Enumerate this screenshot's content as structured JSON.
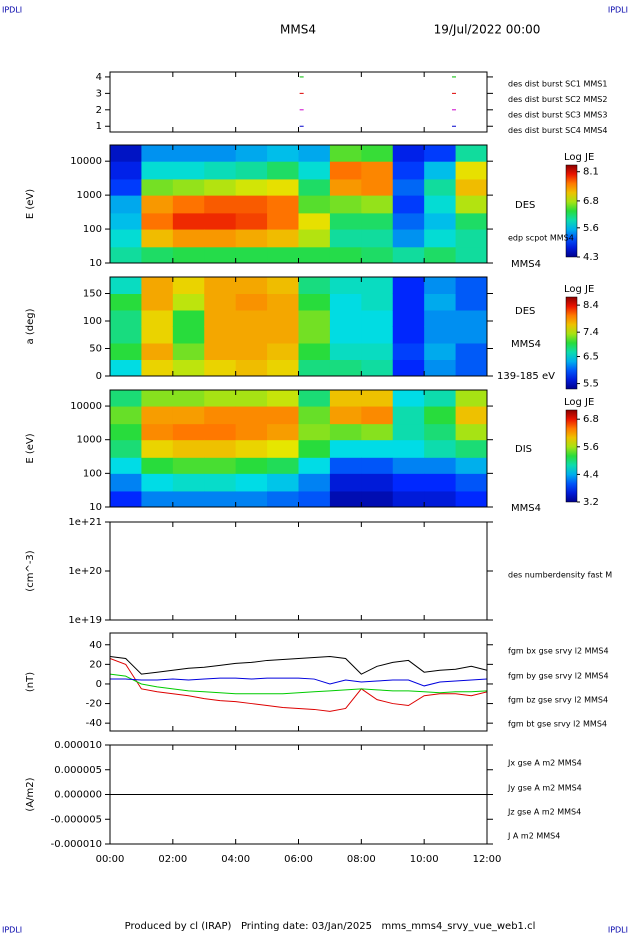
{
  "header": {
    "left_logo": "IPDLI",
    "right_logo": "IPDLI",
    "title": "MMS4",
    "date": "19/Jul/2022 00:00"
  },
  "footer": {
    "text": "Produced by cl (IRAP)   Printing date: 03/Jan/2025   mms_mms4_srvy_vue_web1.cl",
    "left_logo": "IPDLI",
    "right_logo": "IPDLI"
  },
  "chart_data": [
    {
      "type": "scatter",
      "xlim": [
        0,
        12
      ],
      "ylim": [
        0.65,
        4.3
      ],
      "yticks": [
        1,
        2,
        3,
        4
      ],
      "series": [
        {
          "name": "des dist burst SC1 MMS1",
          "color": "#0000cc",
          "x": [
            6.1,
            10.95
          ],
          "values": [
            1,
            1
          ]
        },
        {
          "name": "des dist burst SC2 MMS2",
          "color": "#cc00cc",
          "x": [
            6.1,
            10.95
          ],
          "values": [
            2,
            2
          ]
        },
        {
          "name": "des dist burst SC3 MMS3",
          "color": "#dd0000",
          "x": [
            6.1,
            10.95
          ],
          "values": [
            3,
            3
          ]
        },
        {
          "name": "des dist burst SC4 MMS4",
          "color": "#00bb00",
          "x": [
            6.1,
            10.95
          ],
          "values": [
            4,
            4
          ]
        }
      ]
    },
    {
      "type": "heatmap",
      "ylabel": "E (eV)",
      "log_y": true,
      "xlim": [
        0,
        12
      ],
      "ylim": [
        10,
        30000
      ],
      "yticks": [
        10,
        100,
        1000,
        10000
      ],
      "labels": [
        "DES",
        "edp scpot MMS4",
        "MMS4"
      ],
      "colorbar": {
        "title": "Log JE",
        "lim": [
          4.3,
          8.4
        ],
        "ticks": [
          8.1,
          6.8,
          5.6,
          4.3
        ]
      },
      "x_edges": [
        0,
        1,
        2,
        3,
        4,
        5,
        6,
        7,
        8,
        9,
        10,
        11,
        12
      ],
      "y_edges": [
        10,
        30,
        100,
        300,
        1000,
        3000,
        10000,
        30000
      ],
      "z": [
        [
          6.0,
          5.8,
          5.6,
          5.5,
          5.0,
          4.8,
          4.6
        ],
        [
          6.2,
          7.2,
          7.6,
          7.4,
          6.6,
          5.8,
          5.4
        ],
        [
          6.3,
          7.4,
          7.9,
          7.6,
          6.7,
          5.8,
          5.4
        ],
        [
          6.3,
          7.4,
          7.9,
          7.7,
          6.8,
          5.9,
          5.4
        ],
        [
          6.3,
          7.3,
          7.8,
          7.7,
          6.9,
          6.0,
          5.5
        ],
        [
          6.3,
          7.2,
          7.6,
          7.6,
          7.0,
          6.2,
          5.6
        ],
        [
          6.3,
          6.8,
          7.0,
          6.5,
          6.2,
          5.8,
          5.5
        ],
        [
          6.3,
          6.0,
          6.2,
          6.6,
          7.4,
          7.6,
          6.5
        ],
        [
          6.2,
          6.0,
          6.2,
          6.7,
          7.5,
          7.5,
          6.4
        ],
        [
          6.0,
          5.4,
          5.2,
          5.0,
          5.2,
          5.0,
          4.8
        ],
        [
          6.2,
          5.8,
          5.6,
          5.8,
          6.0,
          5.6,
          5.0
        ],
        [
          6.0,
          6.0,
          6.2,
          6.8,
          7.2,
          7.0,
          6.0
        ]
      ]
    },
    {
      "type": "heatmap",
      "ylabel": "a (deg)",
      "log_y": false,
      "xlim": [
        0,
        12
      ],
      "ylim": [
        0,
        180
      ],
      "yticks": [
        0,
        50,
        100,
        150
      ],
      "labels": [
        "DES",
        "MMS4",
        "139-185 eV"
      ],
      "colorbar": {
        "title": "Log JE",
        "lim": [
          5.3,
          8.7
        ],
        "ticks": [
          8.4,
          7.4,
          6.5,
          5.5
        ]
      },
      "x_edges": [
        0,
        1,
        2,
        3,
        4,
        5,
        6,
        7,
        8,
        9,
        10,
        11,
        12
      ],
      "y_edges": [
        0,
        30,
        60,
        90,
        120,
        150,
        180
      ],
      "z": [
        [
          6.5,
          7.0,
          6.8,
          6.8,
          7.0,
          6.6
        ],
        [
          7.6,
          7.8,
          7.6,
          7.6,
          7.8,
          7.8
        ],
        [
          7.4,
          7.2,
          7.0,
          7.0,
          7.4,
          7.6
        ],
        [
          7.6,
          7.8,
          7.8,
          7.8,
          7.8,
          7.8
        ],
        [
          7.7,
          7.8,
          7.8,
          7.8,
          7.9,
          7.8
        ],
        [
          7.6,
          7.7,
          7.8,
          7.8,
          7.8,
          7.7
        ],
        [
          6.8,
          7.0,
          7.2,
          7.2,
          7.0,
          6.8
        ],
        [
          6.8,
          6.6,
          6.5,
          6.5,
          6.5,
          6.6
        ],
        [
          6.7,
          6.6,
          6.5,
          6.5,
          6.6,
          6.6
        ],
        [
          5.8,
          5.9,
          5.8,
          5.8,
          5.8,
          5.8
        ],
        [
          6.2,
          6.3,
          6.2,
          6.2,
          6.3,
          6.2
        ],
        [
          6.0,
          6.0,
          6.2,
          6.2,
          6.0,
          6.0
        ]
      ]
    },
    {
      "type": "heatmap",
      "ylabel": "E (eV)",
      "log_y": true,
      "xlim": [
        0,
        12
      ],
      "ylim": [
        10,
        30000
      ],
      "yticks": [
        10,
        100,
        1000,
        10000
      ],
      "labels": [
        "DIS",
        "MMS4"
      ],
      "colorbar": {
        "title": "Log JE",
        "lim": [
          3.2,
          7.2
        ],
        "ticks": [
          6.8,
          5.6,
          4.4,
          3.2
        ]
      },
      "x_edges": [
        0,
        1,
        2,
        3,
        4,
        5,
        6,
        7,
        8,
        9,
        10,
        11,
        12
      ],
      "y_edges": [
        10,
        30,
        100,
        300,
        1000,
        3000,
        10000,
        30000
      ],
      "z": [
        [
          3.8,
          4.2,
          4.6,
          5.0,
          5.2,
          5.4,
          5.0
        ],
        [
          4.2,
          4.6,
          5.2,
          5.9,
          6.3,
          6.2,
          5.5
        ],
        [
          4.2,
          4.7,
          5.3,
          6.0,
          6.4,
          6.2,
          5.5
        ],
        [
          4.2,
          4.7,
          5.3,
          6.0,
          6.4,
          6.3,
          5.6
        ],
        [
          4.2,
          4.6,
          5.2,
          5.9,
          6.3,
          6.3,
          5.6
        ],
        [
          4.1,
          4.5,
          5.1,
          5.8,
          6.2,
          6.3,
          5.7
        ],
        [
          4.0,
          4.2,
          4.6,
          5.2,
          5.5,
          5.4,
          5.0
        ],
        [
          3.4,
          3.6,
          4.0,
          4.6,
          5.4,
          6.2,
          6.0
        ],
        [
          3.4,
          3.6,
          4.0,
          4.6,
          5.5,
          6.3,
          6.0
        ],
        [
          3.6,
          3.8,
          4.2,
          4.6,
          4.8,
          4.8,
          4.6
        ],
        [
          3.6,
          3.8,
          4.2,
          4.8,
          5.0,
          5.2,
          4.8
        ],
        [
          3.8,
          4.0,
          4.4,
          5.0,
          5.6,
          6.0,
          5.6
        ]
      ]
    },
    {
      "type": "line",
      "ylabel": "(cm^-3)",
      "log_y": true,
      "xlim": [
        0,
        12
      ],
      "ylim": [
        1e+19,
        1e+21
      ],
      "yticks": [
        {
          "value": 1e+19,
          "label": "1e+19"
        },
        {
          "value": 1e+20,
          "label": "1e+20"
        },
        {
          "value": 1e+21,
          "label": "1e+21"
        }
      ],
      "labels": [
        "des numberdensity fast M"
      ],
      "x": [],
      "series": []
    },
    {
      "type": "line",
      "ylabel": "(nT)",
      "log_y": false,
      "xlim": [
        0,
        12
      ],
      "ylim": [
        -48,
        52
      ],
      "yticks": [
        -40,
        -20,
        0,
        20,
        40
      ],
      "x": [
        0,
        0.5,
        1,
        1.5,
        2,
        2.5,
        3,
        3.5,
        4,
        4.5,
        5,
        5.5,
        6,
        6.5,
        7,
        7.5,
        8,
        8.5,
        9,
        9.5,
        10,
        10.5,
        11,
        11.5,
        12
      ],
      "series": [
        {
          "name": "fgm bx gse srvy l2 MMS4",
          "color": "#dd0000",
          "values": [
            26,
            20,
            -5,
            -8,
            -10,
            -12,
            -15,
            -17,
            -18,
            -20,
            -22,
            -24,
            -25,
            -26,
            -28,
            -25,
            -5,
            -16,
            -20,
            -22,
            -12,
            -10,
            -10,
            -12,
            -8
          ]
        },
        {
          "name": "fgm by gse srvy l2 MMS4",
          "color": "#00cc00",
          "values": [
            10,
            8,
            0,
            -3,
            -5,
            -7,
            -8,
            -9,
            -10,
            -10,
            -10,
            -10,
            -9,
            -8,
            -7,
            -6,
            -5,
            -6,
            -7,
            -7,
            -8,
            -9,
            -8,
            -8,
            -7
          ]
        },
        {
          "name": "fgm bz gse srvy l2 MMS4",
          "color": "#0000dd",
          "values": [
            5,
            5,
            4,
            4,
            5,
            4,
            5,
            6,
            6,
            5,
            6,
            6,
            6,
            5,
            0,
            4,
            2,
            3,
            4,
            4,
            -2,
            2,
            3,
            4,
            5
          ]
        },
        {
          "name": "fgm bt gse srvy l2 MMS4",
          "color": "#000000",
          "values": [
            28,
            26,
            10,
            12,
            14,
            16,
            17,
            19,
            21,
            22,
            24,
            25,
            26,
            27,
            28,
            26,
            10,
            18,
            22,
            24,
            12,
            14,
            15,
            18,
            14
          ]
        }
      ]
    },
    {
      "type": "line",
      "ylabel": "(A/m2)",
      "log_y": false,
      "xlim": [
        0,
        12
      ],
      "ylim": [
        -1e-05,
        1e-05
      ],
      "yticks": [
        {
          "value": -1e-05,
          "label": "-0.000010"
        },
        {
          "value": -5e-06,
          "label": "-0.000005"
        },
        {
          "value": 0,
          "label": "0.000000"
        },
        {
          "value": 5e-06,
          "label": "0.000005"
        },
        {
          "value": 1e-05,
          "label": "0.000010"
        }
      ],
      "xticks": [
        {
          "value": 0,
          "label": "00:00"
        },
        {
          "value": 2,
          "label": "02:00"
        },
        {
          "value": 4,
          "label": "04:00"
        },
        {
          "value": 6,
          "label": "06:00"
        },
        {
          "value": 8,
          "label": "08:00"
        },
        {
          "value": 10,
          "label": "10:00"
        },
        {
          "value": 12,
          "label": "12:00"
        }
      ],
      "x": [
        0,
        12
      ],
      "series": [
        {
          "name": "Jx gse A m2 MMS4",
          "color": "#dd0000",
          "values": [
            0,
            0
          ]
        },
        {
          "name": "Jy gse A m2 MMS4",
          "color": "#66cc00",
          "values": [
            0,
            0
          ]
        },
        {
          "name": "Jz gse A m2 MMS4",
          "color": "#0000dd",
          "values": [
            0,
            0
          ]
        },
        {
          "name": "J A m2 MMS4",
          "color": "#000000",
          "values": [
            0,
            0
          ]
        }
      ]
    }
  ]
}
